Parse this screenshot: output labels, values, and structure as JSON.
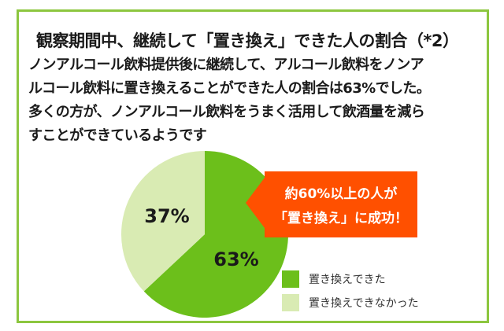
{
  "title": "観察期間中、継続して「置き換え」できた人の割合（*2）",
  "body_lines": [
    "ノンアルコール飲料提供後に継続して、アルコール飲料をノンア",
    "ルコール飲料に置き換えることができた人の割合は63%でした。",
    "多くの方が、ノンアルコール飲料をうまく活用して飲酒量を減ら",
    "すことができているようです"
  ],
  "callout": {
    "line1": "約60%以上の人が",
    "line2": "「置き換え」に成功！",
    "color": "#ff5000"
  },
  "colors": {
    "border": "#8cc63f",
    "replaced": "#6cbf1b",
    "not_replaced": "#d9ebb3"
  },
  "chart_data": {
    "type": "pie",
    "slices": [
      {
        "name": "置き換えできた",
        "value": 63,
        "label": "63%",
        "color": "#6cbf1b"
      },
      {
        "name": "置き換えできなかった",
        "value": 37,
        "label": "37%",
        "color": "#d9ebb3"
      }
    ],
    "start": "top",
    "direction": "clockwise",
    "legend": "bottom-right"
  }
}
